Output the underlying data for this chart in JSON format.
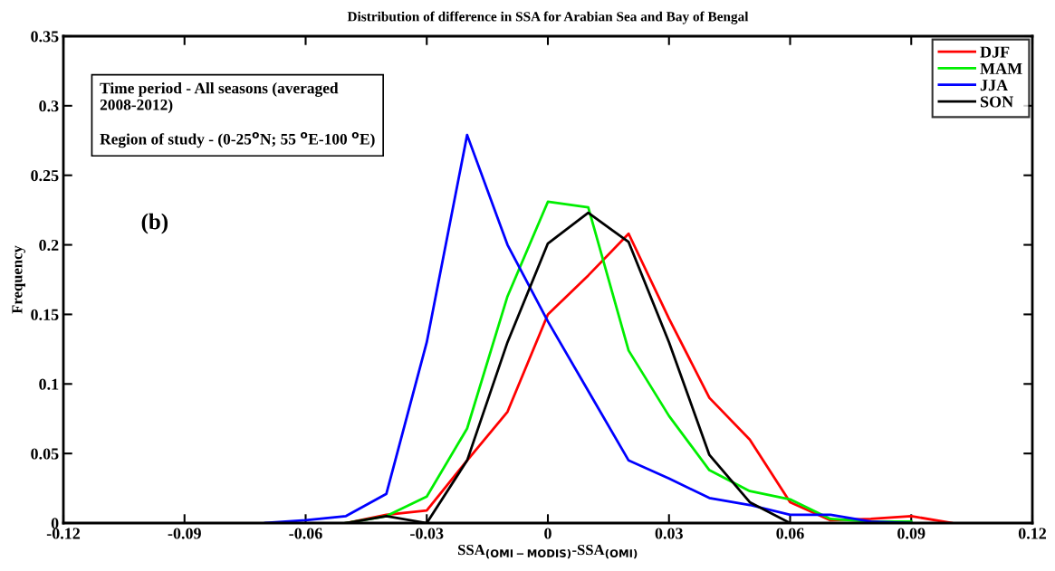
{
  "chart_data": {
    "type": "line",
    "title": "Distribution of difference in SSA for Arabian Sea and Bay of Bengal",
    "xlabel": "SSA$_{(OMI−MODIS)}$-SSA$_{(OMI)}$",
    "ylabel": "Frequency",
    "xlim": [
      -0.12,
      0.12
    ],
    "xticks": [
      -0.12,
      -0.09,
      -0.06,
      -0.03,
      0,
      0.03,
      0.06,
      0.09,
      0.12
    ],
    "ylim": [
      0,
      0.35
    ],
    "yticks": [
      0,
      0.05,
      0.1,
      0.15,
      0.2,
      0.25,
      0.3,
      0.35
    ],
    "grid": false,
    "legend": "top right",
    "marker": "none",
    "line_style": "solid",
    "annotations": [
      "Time period - All seasons (averaged\n2008-2012)\n\nRegion of study - (0-25$^{o}$N; 55 $^{o}$E-100 $^{o}$E)",
      "(b)"
    ],
    "series": [
      {
        "name": "DJF",
        "color": "#ff0000",
        "x": [
          -0.05,
          -0.04,
          -0.03,
          -0.02,
          -0.01,
          0,
          0.01,
          0.02,
          0.03,
          0.04,
          0.05,
          0.06,
          0.07,
          0.08,
          0.09,
          0.1
        ],
        "values": [
          0,
          0.006,
          0.009,
          0.045,
          0.08,
          0.15,
          0.178,
          0.208,
          0.147,
          0.09,
          0.06,
          0.015,
          0.002,
          0.003,
          0.005,
          0
        ]
      },
      {
        "name": "MAM",
        "color": "#00ee00",
        "x": [
          -0.05,
          -0.04,
          -0.03,
          -0.02,
          -0.01,
          0,
          0.01,
          0.02,
          0.03,
          0.04,
          0.05,
          0.06,
          0.07,
          0.08,
          0.09
        ],
        "values": [
          0,
          0.005,
          0.019,
          0.068,
          0.163,
          0.231,
          0.227,
          0.124,
          0.077,
          0.038,
          0.023,
          0.017,
          0.003,
          0.001,
          0.001
        ]
      },
      {
        "name": "JJA",
        "color": "#0000ff",
        "x": [
          -0.07,
          -0.06,
          -0.05,
          -0.04,
          -0.03,
          -0.02,
          -0.01,
          0,
          0.01,
          0.02,
          0.03,
          0.04,
          0.05,
          0.06,
          0.07,
          0.08,
          0.09
        ],
        "values": [
          0,
          0.002,
          0.005,
          0.021,
          0.13,
          0.279,
          0.2,
          0.145,
          0.095,
          0.045,
          0.032,
          0.018,
          0.013,
          0.006,
          0.006,
          0.001,
          0
        ]
      },
      {
        "name": "SON",
        "color": "#000000",
        "x": [
          -0.05,
          -0.04,
          -0.03,
          -0.02,
          -0.01,
          0,
          0.01,
          0.02,
          0.03,
          0.04,
          0.05,
          0.06
        ],
        "values": [
          0,
          0.005,
          0,
          0.045,
          0.13,
          0.201,
          0.223,
          0.202,
          0.13,
          0.049,
          0.015,
          0
        ]
      }
    ]
  }
}
